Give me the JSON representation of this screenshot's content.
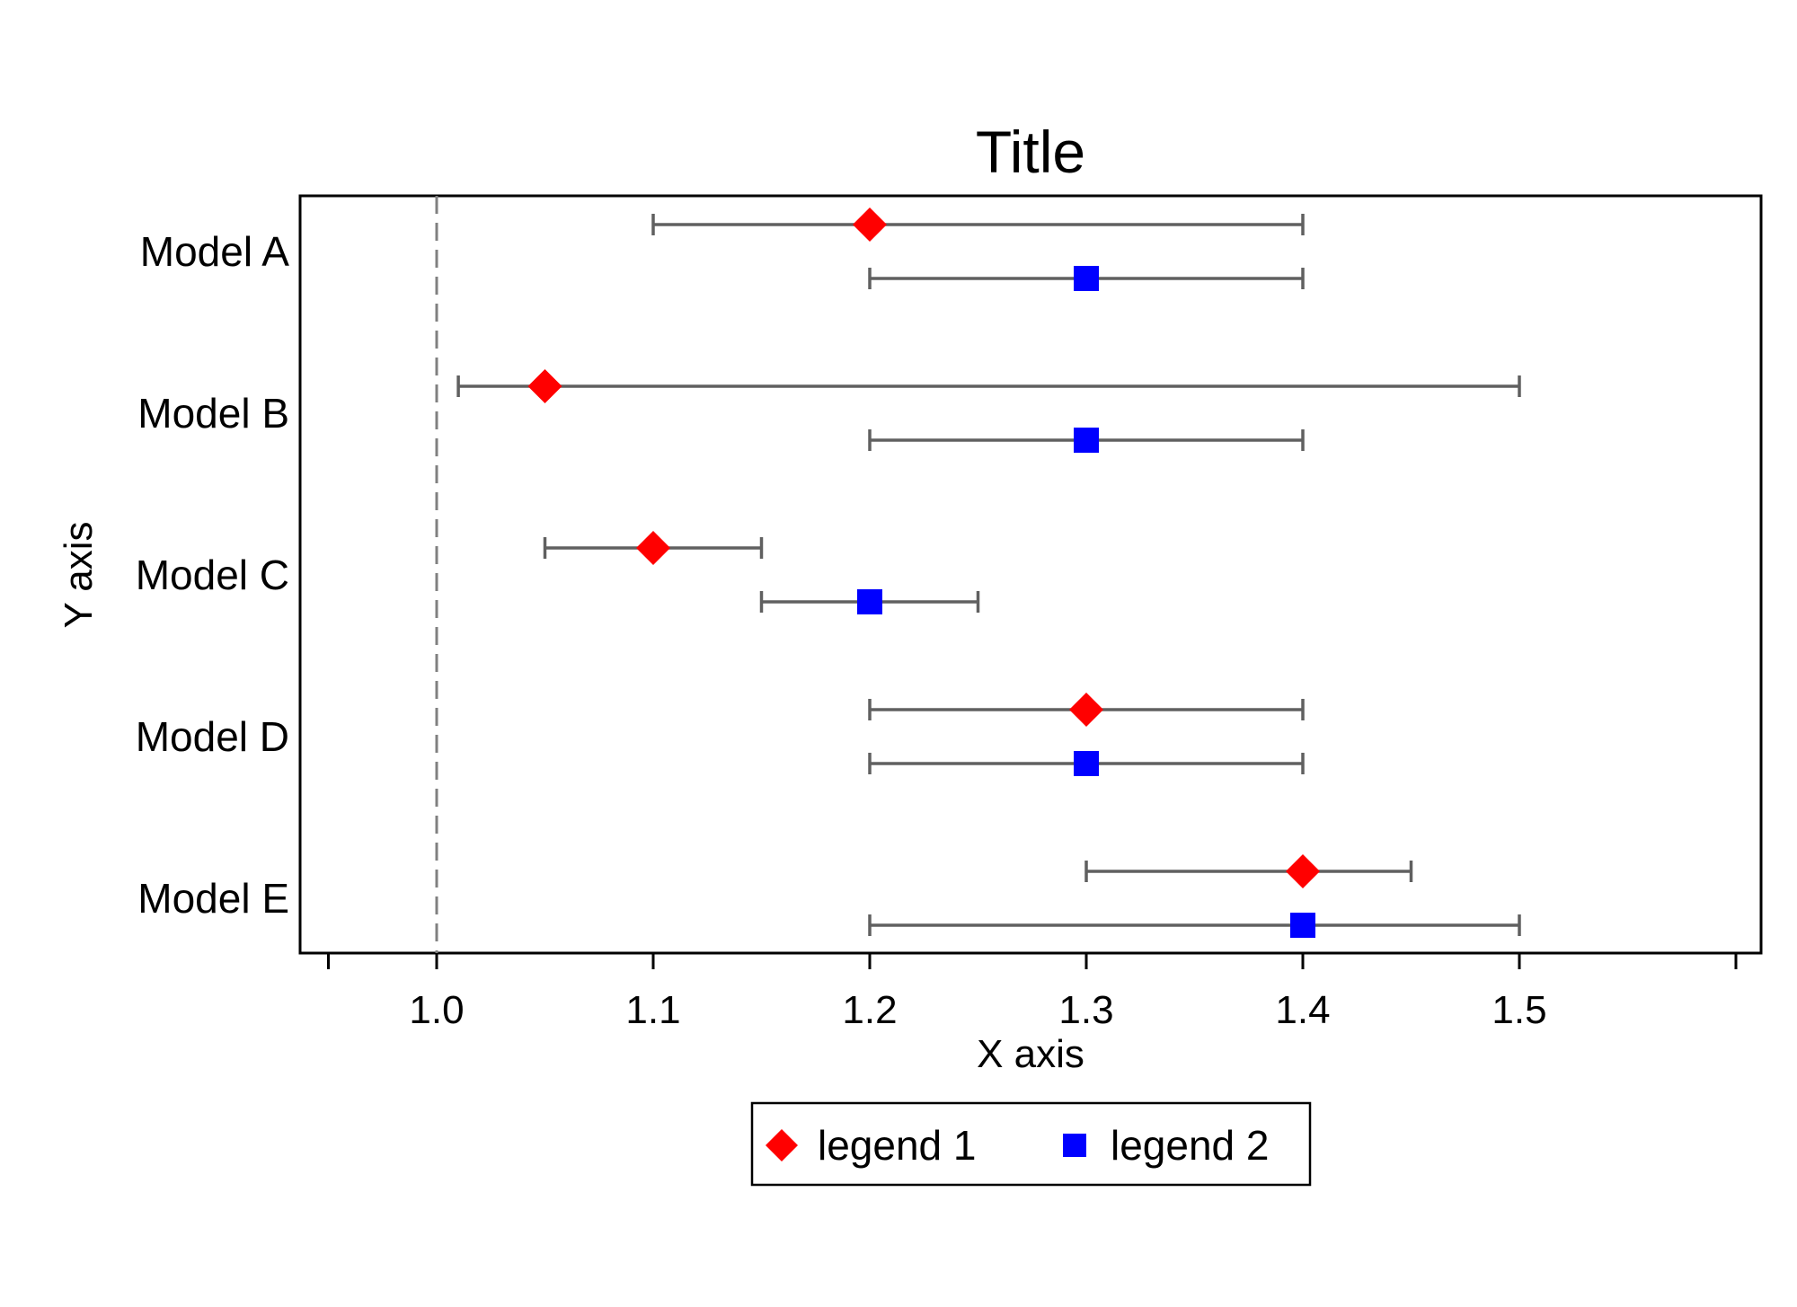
{
  "chart_data": {
    "type": "scatter",
    "subtype": "forest-plot",
    "title": "Title",
    "xlabel": "X axis",
    "ylabel": "Y axis",
    "xlim": [
      0.95,
      1.6
    ],
    "x_ticks": [
      1.0,
      1.1,
      1.2,
      1.3,
      1.4,
      1.5
    ],
    "x_tick_labels": [
      "1.0",
      "1.1",
      "1.2",
      "1.3",
      "1.4",
      "1.5"
    ],
    "reference_line": {
      "x": 1.0,
      "style": "dashed"
    },
    "categories": [
      "Model A",
      "Model B",
      "Model C",
      "Model D",
      "Model E"
    ],
    "series": [
      {
        "name": "legend 1",
        "marker": "diamond",
        "color": "#ff0000",
        "points": [
          {
            "category": "Model A",
            "value": 1.2,
            "low": 1.1,
            "high": 1.4
          },
          {
            "category": "Model B",
            "value": 1.05,
            "low": 1.01,
            "high": 1.5
          },
          {
            "category": "Model C",
            "value": 1.1,
            "low": 1.05,
            "high": 1.15
          },
          {
            "category": "Model D",
            "value": 1.3,
            "low": 1.2,
            "high": 1.4
          },
          {
            "category": "Model E",
            "value": 1.4,
            "low": 1.3,
            "high": 1.45
          }
        ]
      },
      {
        "name": "legend 2",
        "marker": "square",
        "color": "#0000ff",
        "points": [
          {
            "category": "Model A",
            "value": 1.3,
            "low": 1.2,
            "high": 1.4
          },
          {
            "category": "Model B",
            "value": 1.3,
            "low": 1.2,
            "high": 1.4
          },
          {
            "category": "Model C",
            "value": 1.2,
            "low": 1.15,
            "high": 1.25
          },
          {
            "category": "Model D",
            "value": 1.3,
            "low": 1.2,
            "high": 1.4
          },
          {
            "category": "Model E",
            "value": 1.4,
            "low": 1.2,
            "high": 1.5
          }
        ]
      }
    ],
    "error_bar_color": "#606060",
    "grid": false,
    "legend_position": "bottom-center"
  }
}
